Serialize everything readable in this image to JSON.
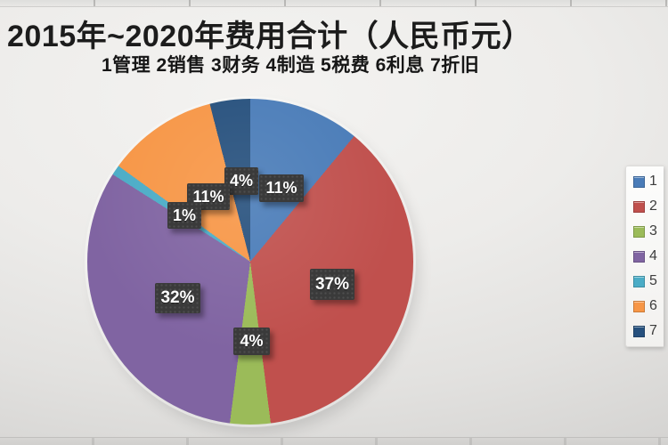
{
  "header": {
    "title": "2015年~2020年费用合计（人民币元）",
    "subtitle": "1管理 2销售 3财务 4制造 5税费 6利息 7折旧"
  },
  "chart_data": {
    "type": "pie",
    "title": "2015年~2020年费用合计（人民币元）",
    "legend_key": "1管理 2销售 3财务 4制造 5税费 6利息 7折旧",
    "categories": [
      "1 管理",
      "2 销售",
      "3 财务",
      "4 制造",
      "5 税费",
      "6 利息",
      "7 折旧"
    ],
    "values": [
      11,
      37,
      4,
      32,
      1,
      11,
      4
    ],
    "unit": "%",
    "value_labels": [
      "11%",
      "37%",
      "4%",
      "32%",
      "1%",
      "11%",
      "4%"
    ],
    "colors": [
      "#4a7cb8",
      "#c0504d",
      "#9bbb59",
      "#8064a2",
      "#4bacc6",
      "#f79646",
      "#26507d"
    ],
    "start_angle_deg": 0,
    "direction": "clockwise",
    "legend": {
      "position": "right",
      "labels": [
        "1",
        "2",
        "3",
        "4",
        "5",
        "6",
        "7"
      ]
    },
    "label_style": {
      "background": "#3a3a3a",
      "text_color": "#ffffff"
    }
  }
}
